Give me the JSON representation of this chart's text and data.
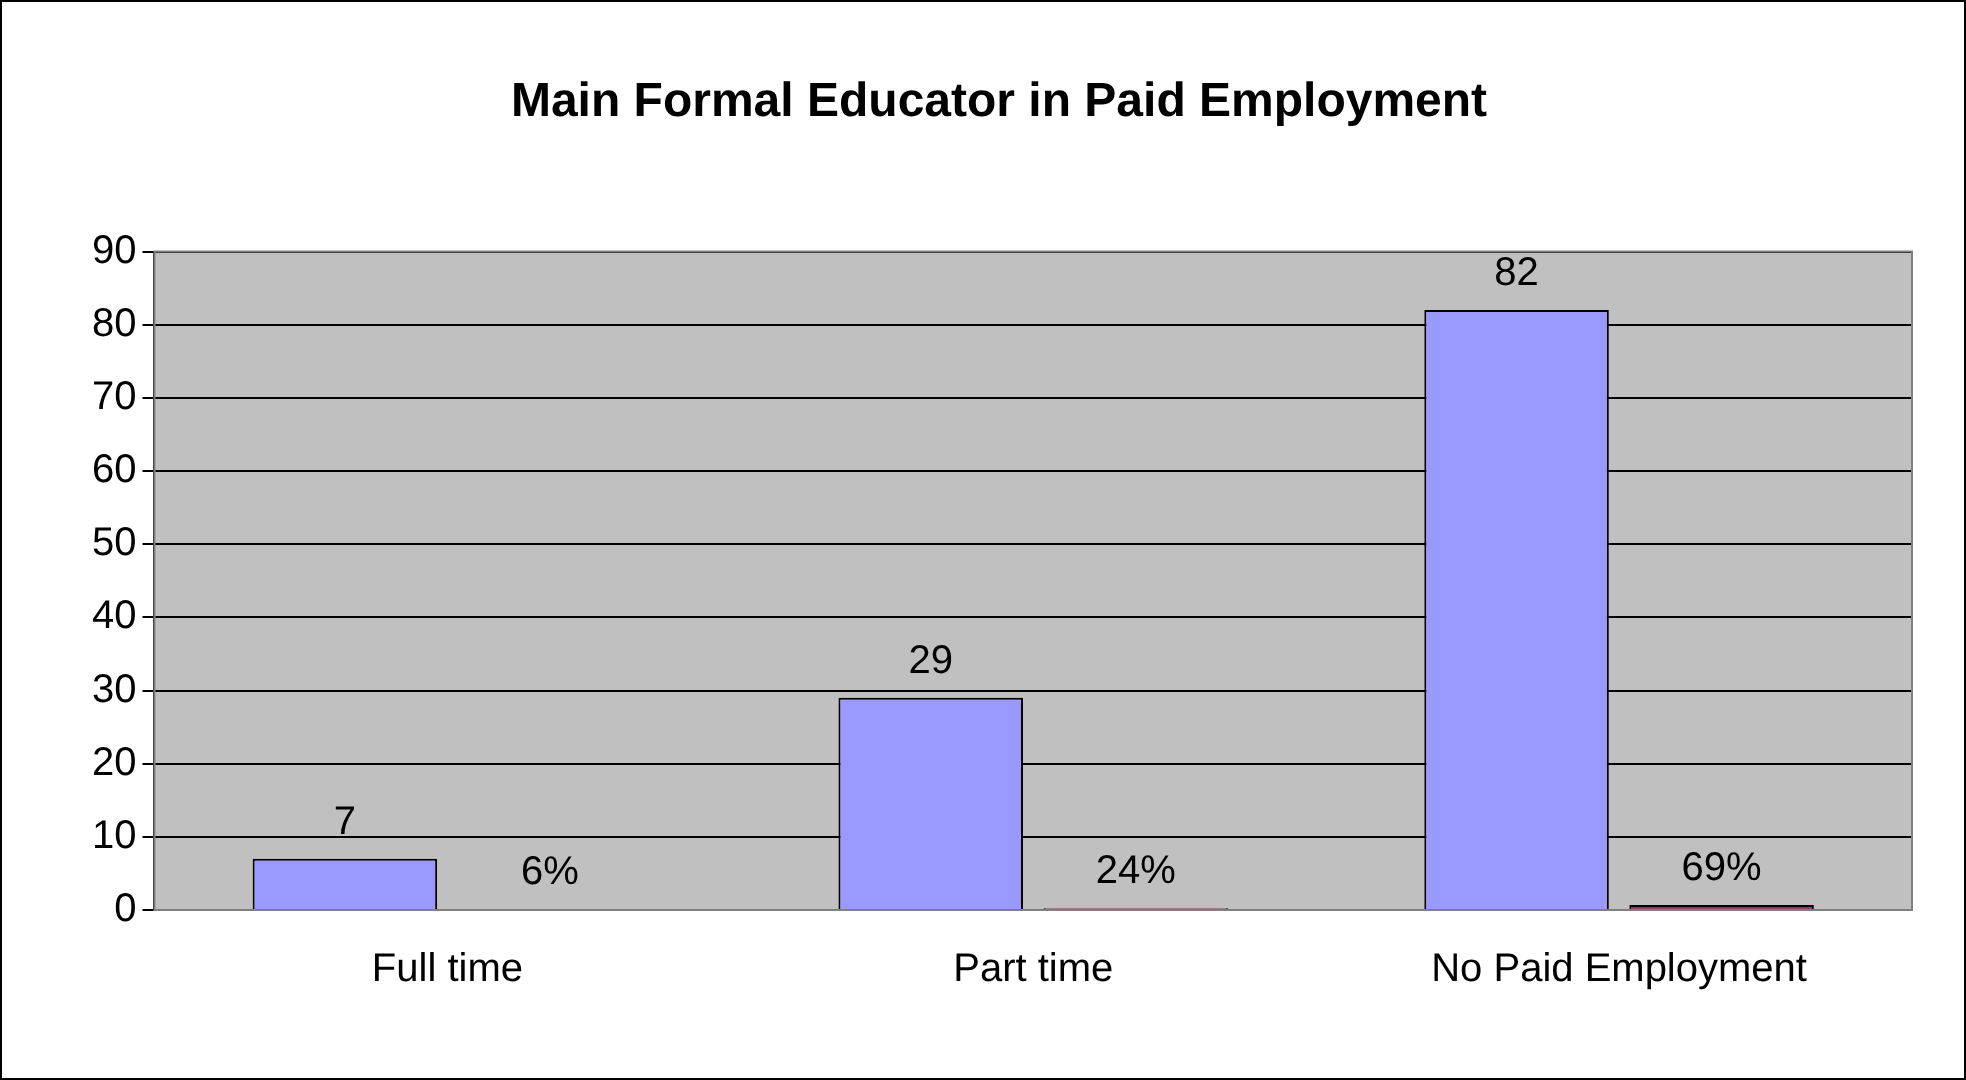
{
  "chart_data": {
    "type": "bar",
    "title": "Main Formal Educator in Paid Employment",
    "categories": [
      "Full time",
      "Part time",
      "No Paid Employment"
    ],
    "series": [
      {
        "color": "#9999ff",
        "values": [
          7,
          29,
          82
        ],
        "value_labels": [
          "7",
          "29",
          "82"
        ]
      },
      {
        "color": "#993366",
        "values": [
          0.06,
          0.24,
          0.69
        ],
        "value_labels": [
          "6%",
          "24%",
          "69%"
        ]
      }
    ],
    "ylim": [
      0,
      90
    ],
    "yticks": [
      0,
      10,
      20,
      30,
      40,
      50,
      60,
      70,
      80,
      90
    ],
    "grid": "y",
    "legend": false
  }
}
